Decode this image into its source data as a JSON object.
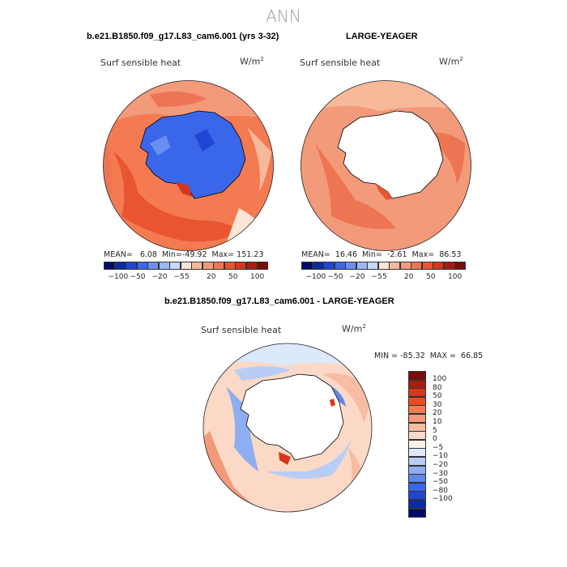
{
  "figure": {
    "title": "ANN",
    "panel_left_title": "b.e21.B1850.f09_g17.L83_cam6.001 (yrs 3-32)",
    "panel_right_title": "LARGE-YEAGER",
    "panel_diff_title": "b.e21.B1850.f09_g17.L83_cam6.001 - LARGE-YEAGER",
    "variable_label": "Surf sensible heat",
    "units_base": "W/m",
    "units_exp": "2"
  },
  "left_panel": {
    "mean_label": "MEAN=",
    "mean": "6.08",
    "min_label": "Min=",
    "min": "-49.92",
    "max_label": "Max=",
    "max": "151.23"
  },
  "right_panel": {
    "mean_label": "MEAN=",
    "mean": "16.46",
    "min_label": "Min=",
    "min": "-2.61",
    "max_label": "Max=",
    "max": "86.53"
  },
  "diff_panel": {
    "min_label": "MIN =",
    "min": "-85.32",
    "max_label": "MAX =",
    "max": "66.85"
  },
  "colorbar_main": {
    "colors": [
      "#000a6e",
      "#0b2aa6",
      "#1f47d4",
      "#3a67ea",
      "#6a8ff0",
      "#9cb7f5",
      "#c8d8fb",
      "#fde4d4",
      "#f7b99a",
      "#f39a7a",
      "#ee7554",
      "#e85530",
      "#d8361c",
      "#a81d12",
      "#7a0d08"
    ],
    "ticks": [
      "−100",
      "−50",
      "−20",
      "−5",
      "5",
      "20",
      "50",
      "100"
    ]
  },
  "colorbar_diff": {
    "colors": [
      "#7a0d08",
      "#a81d12",
      "#d8361c",
      "#f04a23",
      "#f47a52",
      "#f39a7a",
      "#f7bca2",
      "#fbd9c6",
      "#fdf0e6",
      "#dce8fc",
      "#b7cdf6",
      "#8daef0",
      "#5e87e8",
      "#3a67ea",
      "#1f47d4",
      "#0b2aa6",
      "#000a6e"
    ],
    "ticks": [
      "100",
      "80",
      "50",
      "30",
      "20",
      "10",
      "5",
      "0",
      "−5",
      "−10",
      "−20",
      "−30",
      "−50",
      "−80",
      "−100"
    ]
  }
}
